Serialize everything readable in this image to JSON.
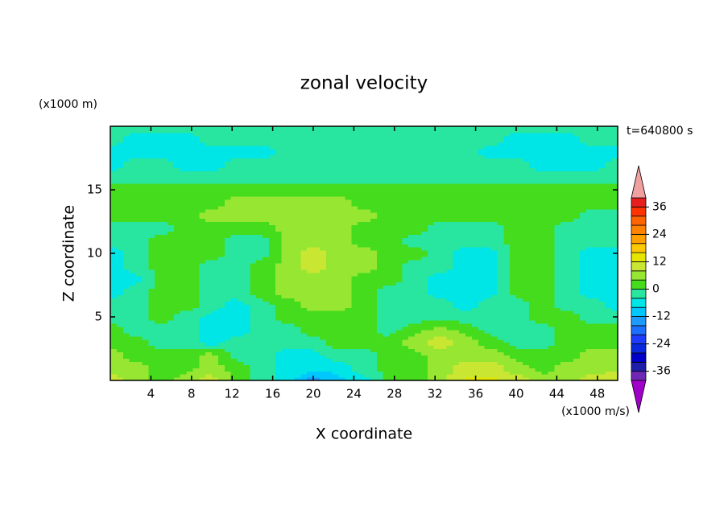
{
  "chart_data": {
    "type": "filled-contour",
    "title": "zonal velocity",
    "x_label": "X coordinate",
    "y_label": "Z coordinate",
    "y_unit_label": "(x1000 m)",
    "unit_label": "(x1000 m/s)",
    "time_label": "t=640800 s",
    "xlim": [
      0,
      50
    ],
    "ylim": [
      0,
      20
    ],
    "xticks": [
      4,
      8,
      12,
      16,
      20,
      24,
      28,
      32,
      36,
      40,
      44,
      48
    ],
    "yticks": [
      5,
      10,
      15
    ],
    "x": [
      0,
      2.5,
      5,
      7.5,
      10,
      12.5,
      15,
      17.5,
      20,
      22.5,
      25,
      27.5,
      30,
      32.5,
      35,
      37.5,
      40,
      42.5,
      45,
      47.5,
      50
    ],
    "y": [
      0,
      1,
      2,
      3,
      4,
      5,
      6,
      7,
      8,
      9,
      10,
      11,
      12,
      13,
      14,
      15,
      16,
      17,
      18,
      19,
      20
    ],
    "z": [
      [
        10,
        6,
        2,
        6,
        10,
        2,
        -2,
        -6,
        -14,
        -10,
        -6,
        2,
        2,
        6,
        13,
        13,
        10,
        6,
        6,
        10,
        13
      ],
      [
        6,
        6,
        2,
        2,
        6,
        2,
        -2,
        -6,
        -6,
        -6,
        -2,
        2,
        2,
        6,
        10,
        10,
        6,
        2,
        6,
        6,
        6
      ],
      [
        6,
        2,
        2,
        2,
        6,
        -2,
        -2,
        -6,
        -6,
        -2,
        -2,
        2,
        2,
        6,
        6,
        6,
        2,
        2,
        2,
        6,
        6
      ],
      [
        2,
        2,
        -2,
        -2,
        -6,
        -2,
        -2,
        -2,
        -2,
        2,
        2,
        2,
        6,
        10,
        6,
        2,
        -2,
        -2,
        2,
        2,
        2
      ],
      [
        2,
        -2,
        -2,
        -2,
        -6,
        -6,
        -2,
        -2,
        2,
        2,
        2,
        -2,
        2,
        6,
        2,
        -2,
        -2,
        -2,
        2,
        2,
        2
      ],
      [
        -2,
        -2,
        2,
        -2,
        -6,
        -6,
        -2,
        2,
        2,
        2,
        2,
        -2,
        -2,
        -2,
        -2,
        -2,
        -2,
        2,
        2,
        -2,
        -2
      ],
      [
        -2,
        -2,
        2,
        2,
        -2,
        -6,
        -2,
        2,
        6,
        6,
        2,
        -2,
        -2,
        -2,
        -6,
        -2,
        -2,
        2,
        -2,
        -2,
        -6
      ],
      [
        -6,
        -2,
        2,
        2,
        -2,
        -2,
        2,
        6,
        6,
        6,
        2,
        -2,
        -2,
        -6,
        -6,
        -6,
        2,
        2,
        -2,
        -6,
        -6
      ],
      [
        -6,
        -6,
        2,
        2,
        -2,
        -2,
        2,
        6,
        6,
        6,
        2,
        2,
        -2,
        -6,
        -6,
        -6,
        2,
        2,
        -2,
        -6,
        -6
      ],
      [
        -6,
        -2,
        2,
        2,
        -2,
        -2,
        2,
        6,
        10,
        6,
        6,
        2,
        -2,
        -2,
        -6,
        -6,
        2,
        2,
        -2,
        -6,
        -6
      ],
      [
        -6,
        -2,
        2,
        2,
        2,
        -2,
        -2,
        6,
        10,
        6,
        6,
        2,
        2,
        -2,
        -6,
        -6,
        2,
        2,
        -2,
        -6,
        -6
      ],
      [
        -2,
        -2,
        2,
        2,
        2,
        -2,
        -2,
        6,
        6,
        6,
        2,
        2,
        -2,
        -2,
        -2,
        -2,
        2,
        2,
        -2,
        -2,
        -2
      ],
      [
        -2,
        -2,
        -2,
        2,
        2,
        2,
        2,
        6,
        6,
        6,
        2,
        2,
        2,
        -2,
        -2,
        -2,
        2,
        2,
        -2,
        -2,
        -2
      ],
      [
        2,
        2,
        2,
        2,
        6,
        6,
        6,
        6,
        6,
        6,
        6,
        2,
        2,
        2,
        2,
        2,
        2,
        2,
        2,
        -2,
        -2
      ],
      [
        2,
        2,
        2,
        2,
        2,
        6,
        6,
        6,
        6,
        6,
        2,
        2,
        2,
        2,
        2,
        2,
        2,
        2,
        2,
        2,
        2
      ],
      [
        2,
        2,
        2,
        2,
        2,
        2,
        2,
        2,
        2,
        2,
        2,
        2,
        2,
        2,
        2,
        2,
        2,
        2,
        2,
        2,
        2
      ],
      [
        -2,
        -2,
        -2,
        -2,
        -2,
        -2,
        -2,
        -2,
        -2,
        -2,
        -2,
        -2,
        -2,
        -2,
        -2,
        -2,
        -2,
        -2,
        -2,
        -2,
        -2
      ],
      [
        -6,
        -2,
        -2,
        -6,
        -6,
        -2,
        -2,
        -2,
        -2,
        -2,
        -2,
        -2,
        -2,
        -2,
        -2,
        -2,
        -2,
        -6,
        -6,
        -6,
        -2
      ],
      [
        -6,
        -6,
        -6,
        -6,
        -6,
        -6,
        -6,
        -2,
        -2,
        -2,
        -2,
        -2,
        -2,
        -2,
        -2,
        -6,
        -6,
        -6,
        -6,
        -6,
        -6
      ],
      [
        -2,
        -6,
        -6,
        -6,
        -2,
        -2,
        -2,
        -2,
        -2,
        -2,
        -2,
        -2,
        -2,
        -2,
        -2,
        -2,
        -6,
        -6,
        -6,
        -2,
        -2
      ],
      [
        -2,
        -2,
        -2,
        -2,
        -2,
        -2,
        -2,
        -2,
        -2,
        -2,
        -2,
        -2,
        -2,
        -2,
        -2,
        -2,
        -2,
        -2,
        -2,
        -2,
        -2
      ]
    ],
    "colorbar": {
      "levels": [
        -40,
        -36,
        -32,
        -28,
        -24,
        -20,
        -16,
        -12,
        -8,
        -4,
        0,
        4,
        8,
        12,
        16,
        20,
        24,
        28,
        32,
        36,
        40
      ],
      "colors": [
        "#a000c8",
        "#6e28b4",
        "#1e1eaa",
        "#0000c8",
        "#0a28dc",
        "#1e3cff",
        "#1e6eff",
        "#1e9bff",
        "#00c8ff",
        "#00e6e6",
        "#28e6a0",
        "#46dc1e",
        "#96e632",
        "#c8e632",
        "#e6e600",
        "#ffc800",
        "#ffa000",
        "#ff8200",
        "#ff6400",
        "#ff3200",
        "#e61e1e",
        "#f0a0a0"
      ],
      "ticks": [
        -36,
        -24,
        -12,
        0,
        12,
        24,
        36
      ]
    }
  }
}
